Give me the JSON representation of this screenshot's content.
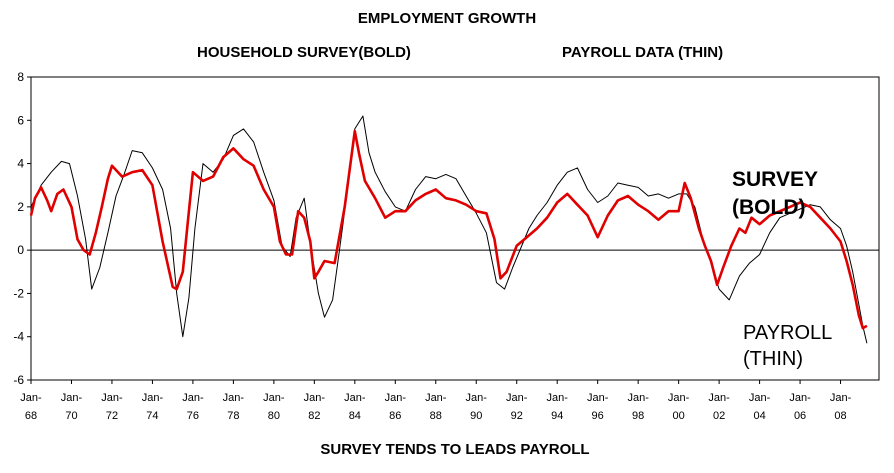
{
  "chart_data": {
    "type": "line",
    "title": "EMPLOYMENT GROWTH",
    "subtitle_left": "HOUSEHOLD SURVEY(BOLD)",
    "subtitle_right": "PAYROLL DATA (THIN)",
    "footer": "SURVEY TENDS TO LEADS PAYROLL",
    "ylim": [
      -6,
      8
    ],
    "yticks": [
      "-6",
      "-4",
      "-2",
      "0",
      "2",
      "4",
      "6",
      "8"
    ],
    "xlim": [
      1968,
      2009.9
    ],
    "xtick_labels": [
      {
        "year": 1968,
        "top": "Jan-",
        "bottom": "68"
      },
      {
        "year": 1970,
        "top": "Jan-",
        "bottom": "70"
      },
      {
        "year": 1972,
        "top": "Jan-",
        "bottom": "72"
      },
      {
        "year": 1974,
        "top": "Jan-",
        "bottom": "74"
      },
      {
        "year": 1976,
        "top": "Jan-",
        "bottom": "76"
      },
      {
        "year": 1978,
        "top": "Jan-",
        "bottom": "78"
      },
      {
        "year": 1980,
        "top": "Jan-",
        "bottom": "80"
      },
      {
        "year": 1982,
        "top": "Jan-",
        "bottom": "82"
      },
      {
        "year": 1984,
        "top": "Jan-",
        "bottom": "84"
      },
      {
        "year": 1986,
        "top": "Jan-",
        "bottom": "86"
      },
      {
        "year": 1988,
        "top": "Jan-",
        "bottom": "88"
      },
      {
        "year": 1990,
        "top": "Jan-",
        "bottom": "90"
      },
      {
        "year": 1992,
        "top": "Jan-",
        "bottom": "92"
      },
      {
        "year": 1994,
        "top": "Jan-",
        "bottom": "94"
      },
      {
        "year": 1996,
        "top": "Jan-",
        "bottom": "96"
      },
      {
        "year": 1998,
        "top": "Jan-",
        "bottom": "98"
      },
      {
        "year": 2000,
        "top": "Jan-",
        "bottom": "00"
      },
      {
        "year": 2002,
        "top": "Jan-",
        "bottom": "02"
      },
      {
        "year": 2004,
        "top": "Jan-",
        "bottom": "04"
      },
      {
        "year": 2006,
        "top": "Jan-",
        "bottom": "06"
      },
      {
        "year": 2008,
        "top": "Jan-",
        "bottom": "08"
      }
    ],
    "annotations": {
      "survey_line1": "SURVEY",
      "survey_line2": "(BOLD)",
      "payroll_line1": "PAYROLL",
      "payroll_line2": "(THIN)"
    },
    "series": [
      {
        "name": "Household Survey (bold)",
        "color": "#e00000",
        "x": [
          1968.0,
          1968.2,
          1968.5,
          1968.8,
          1969.0,
          1969.3,
          1969.6,
          1970.0,
          1970.3,
          1970.6,
          1970.9,
          1971.2,
          1971.5,
          1971.8,
          1972.0,
          1972.5,
          1973.0,
          1973.5,
          1974.0,
          1974.5,
          1975.0,
          1975.2,
          1975.5,
          1975.8,
          1976.0,
          1976.5,
          1977.0,
          1977.5,
          1978.0,
          1978.5,
          1979.0,
          1979.5,
          1980.0,
          1980.3,
          1980.6,
          1980.9,
          1981.2,
          1981.5,
          1981.8,
          1982.0,
          1982.2,
          1982.5,
          1983.0,
          1983.5,
          1984.0,
          1984.2,
          1984.5,
          1985.0,
          1985.5,
          1986.0,
          1986.5,
          1987.0,
          1987.5,
          1988.0,
          1988.5,
          1989.0,
          1989.5,
          1990.0,
          1990.5,
          1990.9,
          1991.2,
          1991.5,
          1992.0,
          1992.5,
          1993.0,
          1993.5,
          1994.0,
          1994.5,
          1995.0,
          1995.5,
          1996.0,
          1996.5,
          1997.0,
          1997.5,
          1998.0,
          1998.5,
          1999.0,
          1999.5,
          2000.0,
          2000.3,
          2000.6,
          2001.0,
          2001.3,
          2001.6,
          2001.9,
          2002.2,
          2002.6,
          2003.0,
          2003.3,
          2003.6,
          2004.0,
          2004.5,
          2005.0,
          2005.5,
          2006.0,
          2006.5,
          2007.0,
          2007.5,
          2008.0,
          2008.3,
          2008.6,
          2008.9,
          2009.1,
          2009.3
        ],
        "values": [
          1.6,
          2.4,
          2.9,
          2.3,
          1.8,
          2.6,
          2.8,
          2.0,
          0.5,
          0.0,
          -0.2,
          0.8,
          2.0,
          3.3,
          3.9,
          3.4,
          3.6,
          3.7,
          3.0,
          0.4,
          -1.7,
          -1.8,
          -1.0,
          1.8,
          3.6,
          3.2,
          3.4,
          4.3,
          4.7,
          4.2,
          3.9,
          2.8,
          2.0,
          0.4,
          -0.2,
          -0.2,
          1.8,
          1.5,
          0.4,
          -1.3,
          -1.0,
          -0.5,
          -0.6,
          2.0,
          5.5,
          4.5,
          3.2,
          2.4,
          1.5,
          1.8,
          1.8,
          2.3,
          2.6,
          2.8,
          2.4,
          2.3,
          2.1,
          1.8,
          1.7,
          0.5,
          -1.3,
          -1.0,
          0.2,
          0.6,
          1.0,
          1.5,
          2.2,
          2.6,
          2.1,
          1.6,
          0.6,
          1.6,
          2.3,
          2.5,
          2.1,
          1.8,
          1.4,
          1.8,
          1.8,
          3.1,
          2.4,
          1.0,
          0.2,
          -0.5,
          -1.6,
          -0.8,
          0.2,
          1.0,
          0.8,
          1.5,
          1.2,
          1.6,
          1.8,
          2.0,
          2.2,
          2.0,
          1.5,
          1.0,
          0.4,
          -0.5,
          -1.6,
          -3.0,
          -3.6,
          -3.5
        ]
      },
      {
        "name": "Payroll Data (thin)",
        "color": "#000000",
        "x": [
          1968.0,
          1968.5,
          1969.0,
          1969.5,
          1969.9,
          1970.3,
          1970.7,
          1971.0,
          1971.4,
          1971.8,
          1972.2,
          1972.6,
          1973.0,
          1973.5,
          1974.0,
          1974.5,
          1974.9,
          1975.2,
          1975.5,
          1975.8,
          1976.1,
          1976.5,
          1977.0,
          1977.5,
          1978.0,
          1978.5,
          1979.0,
          1979.5,
          1980.0,
          1980.4,
          1980.8,
          1981.1,
          1981.5,
          1981.8,
          1982.2,
          1982.5,
          1982.9,
          1983.2,
          1983.6,
          1984.0,
          1984.4,
          1984.7,
          1985.0,
          1985.5,
          1986.0,
          1986.5,
          1987.0,
          1987.5,
          1988.0,
          1988.5,
          1989.0,
          1989.5,
          1990.0,
          1990.5,
          1991.0,
          1991.4,
          1991.8,
          1992.2,
          1992.6,
          1993.0,
          1993.5,
          1994.0,
          1994.5,
          1995.0,
          1995.5,
          1996.0,
          1996.5,
          1997.0,
          1997.5,
          1998.0,
          1998.5,
          1999.0,
          1999.5,
          2000.0,
          2000.4,
          2000.8,
          2001.2,
          2001.6,
          2002.0,
          2002.5,
          2003.0,
          2003.5,
          2004.0,
          2004.5,
          2005.0,
          2005.5,
          2006.0,
          2006.5,
          2007.0,
          2007.5,
          2008.0,
          2008.3,
          2008.6,
          2008.9,
          2009.1,
          2009.3
        ],
        "values": [
          2.0,
          3.0,
          3.6,
          4.1,
          4.0,
          2.5,
          0.5,
          -1.8,
          -0.8,
          0.8,
          2.5,
          3.5,
          4.6,
          4.5,
          3.8,
          2.8,
          1.0,
          -2.0,
          -4.0,
          -2.2,
          1.0,
          4.0,
          3.6,
          4.2,
          5.3,
          5.6,
          5.0,
          3.6,
          2.3,
          0.2,
          -0.3,
          1.5,
          2.4,
          0.3,
          -2.0,
          -3.1,
          -2.3,
          -0.3,
          2.5,
          5.6,
          6.2,
          4.5,
          3.6,
          2.7,
          2.0,
          1.8,
          2.8,
          3.4,
          3.3,
          3.5,
          3.3,
          2.5,
          1.7,
          0.8,
          -1.5,
          -1.8,
          -0.8,
          0.1,
          1.0,
          1.6,
          2.2,
          3.0,
          3.6,
          3.8,
          2.8,
          2.2,
          2.5,
          3.1,
          3.0,
          2.9,
          2.5,
          2.6,
          2.4,
          2.6,
          2.6,
          2.0,
          0.5,
          -0.6,
          -1.8,
          -2.3,
          -1.2,
          -0.6,
          -0.2,
          0.8,
          1.5,
          1.7,
          1.9,
          2.1,
          2.0,
          1.4,
          1.0,
          0.2,
          -1.0,
          -2.5,
          -3.5,
          -4.3
        ]
      }
    ]
  }
}
